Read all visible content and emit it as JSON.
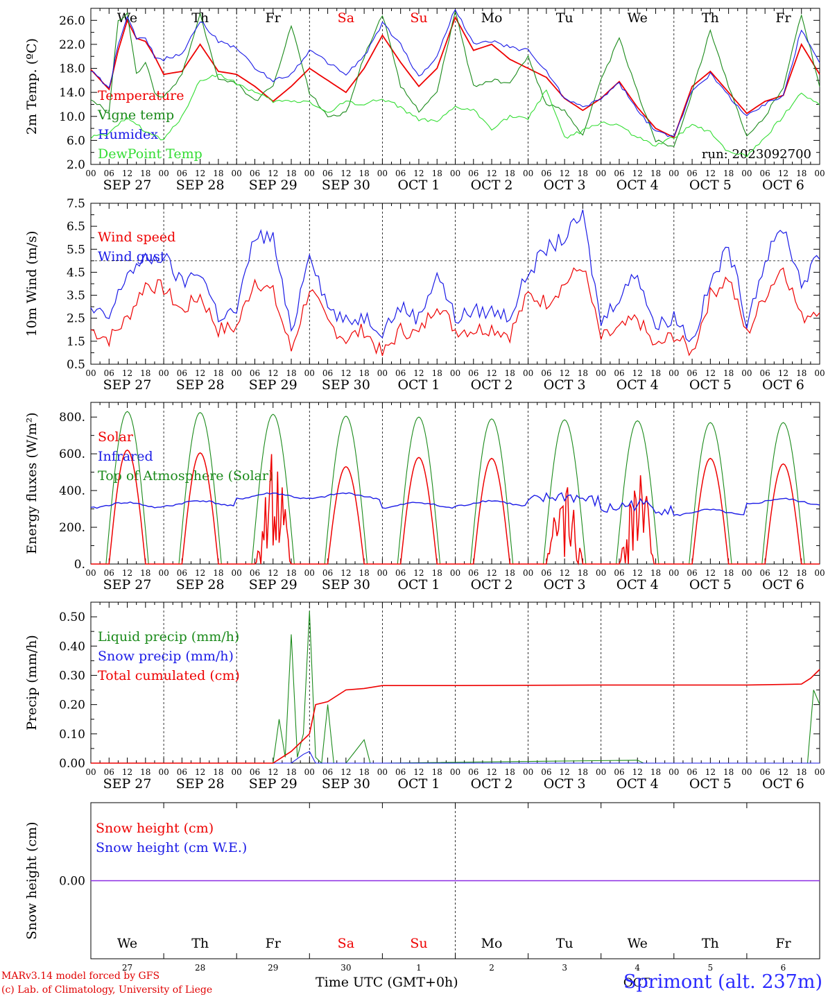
{
  "colors": {
    "red": "#ee0000",
    "green": "#1a8a1a",
    "blue": "#1a1ae6",
    "lightgreen": "#33dd33",
    "purple": "#8a2be2"
  },
  "days": [
    "We",
    "Th",
    "Fr",
    "Sa",
    "Su",
    "Mo",
    "Tu",
    "We",
    "Th",
    "Fr"
  ],
  "weekend_day_indices": [
    3,
    4
  ],
  "dates": [
    "SEP 27",
    "SEP 28",
    "SEP 29",
    "SEP 30",
    "OCT  1",
    "OCT  2",
    "OCT  3",
    "OCT  4",
    "OCT  5",
    "OCT  6"
  ],
  "hour_ticks": [
    "00",
    "06",
    "12",
    "18"
  ],
  "final_tick": "00",
  "panel1": {
    "ylabel": "2m Temp. (ºC)",
    "yticks": [
      "2.0",
      "6.0",
      "10.0",
      "14.0",
      "18.0",
      "22.0",
      "26.0"
    ],
    "ylim": [
      2,
      28
    ],
    "run_label": "run: 2023092700",
    "legend": [
      "Temperature",
      "Vigne temp",
      "Humidex",
      "DewPoint Temp"
    ]
  },
  "panel2": {
    "ylabel": "10m Wind (m/s)",
    "yticks": [
      "0.5",
      "1.5",
      "2.5",
      "3.5",
      "4.5",
      "5.5",
      "6.5",
      "7.5"
    ],
    "ylim": [
      0.5,
      7.5
    ],
    "threshold": 5.0,
    "legend": [
      "Wind speed",
      "Wind gust"
    ]
  },
  "panel3": {
    "ylabel": "Energy fluxes (W/m²)",
    "yticks": [
      "0.",
      "200.",
      "400.",
      "600.",
      "800."
    ],
    "ylim": [
      0,
      880
    ],
    "legend": [
      "Solar",
      "Infrared",
      "Top of Atmosphere (Solar)"
    ]
  },
  "panel4": {
    "ylabel": "Precip (mm/h)",
    "yticks": [
      "0.00",
      "0.10",
      "0.20",
      "0.30",
      "0.40",
      "0.50"
    ],
    "ylim": [
      0,
      0.55
    ],
    "legend": [
      "Liquid precip (mm/h)",
      "Snow precip (mm/h)",
      "Total cumulated (cm)"
    ]
  },
  "panel5": {
    "ylabel": "Snow height (cm)",
    "yticks": [
      "0.00"
    ],
    "legend": [
      "Snow height (cm)",
      "Snow height (cm W.E.)"
    ],
    "day_numbers": [
      "27",
      "28",
      "29",
      "30",
      "1",
      "2",
      "3",
      "4",
      "5",
      "6"
    ],
    "month_label": "OCT"
  },
  "footer": {
    "model": "MARv3.14 model forced by GFS",
    "lab": "(c) Lab. of Climatology, University of Liege",
    "xlabel": "Time UTC (GMT+0h)",
    "station": "Sprimont (alt. 237m)"
  },
  "chart_data": [
    {
      "type": "line",
      "title": "",
      "ylabel": "2m Temp. (ºC)",
      "x_unit": "hours since SEP 27 00 UTC",
      "ylim": [
        2,
        28
      ],
      "series": [
        {
          "name": "Temperature",
          "color": "#ee0000",
          "x": [
            0,
            6,
            9,
            12,
            15,
            18,
            21,
            24,
            30,
            36,
            42,
            48,
            54,
            60,
            66,
            72,
            78,
            84,
            90,
            96,
            102,
            108,
            114,
            120,
            126,
            132,
            138,
            144,
            150,
            156,
            162,
            168,
            174,
            180,
            186,
            192,
            198,
            204,
            210,
            216,
            222,
            228,
            234,
            240
          ],
          "values": [
            17.8,
            14.5,
            21.0,
            26.0,
            23.0,
            22.5,
            20.0,
            17.0,
            17.5,
            22.0,
            17.5,
            17.0,
            15.0,
            12.5,
            15.0,
            18.0,
            16.0,
            14.0,
            18.0,
            23.5,
            19.0,
            15.0,
            18.0,
            26.5,
            21.0,
            22.0,
            19.5,
            18.0,
            16.5,
            13.0,
            11.0,
            13.0,
            15.8,
            11.5,
            8.0,
            6.5,
            15.0,
            17.5,
            14.0,
            10.5,
            12.5,
            13.5,
            22.0,
            17.0
          ]
        },
        {
          "name": "Vigne temp",
          "color": "#1a8a1a",
          "x": [
            0,
            6,
            9,
            12,
            15,
            18,
            21,
            24,
            30,
            36,
            42,
            48,
            54,
            60,
            66,
            72,
            78,
            84,
            90,
            96,
            102,
            108,
            114,
            120,
            126,
            132,
            138,
            144,
            150,
            156,
            162,
            168,
            174,
            180,
            186,
            192,
            198,
            204,
            210,
            216,
            222,
            228,
            234,
            240
          ],
          "values": [
            13.0,
            10.5,
            26.0,
            27.0,
            17.0,
            19.0,
            14.0,
            13.0,
            17.0,
            27.0,
            16.0,
            15.5,
            12.5,
            15.0,
            25.0,
            14.0,
            10.0,
            10.5,
            20.0,
            27.0,
            15.0,
            11.0,
            14.0,
            27.5,
            15.0,
            16.0,
            15.5,
            20.0,
            12.0,
            11.0,
            7.0,
            16.0,
            23.0,
            14.0,
            6.0,
            5.0,
            14.0,
            24.5,
            15.0,
            6.5,
            10.0,
            15.0,
            27.0,
            15.0
          ]
        },
        {
          "name": "Humidex",
          "color": "#1a1ae6",
          "x": [
            0,
            6,
            9,
            12,
            15,
            18,
            21,
            24,
            30,
            36,
            42,
            48,
            54,
            60,
            66,
            72,
            78,
            84,
            90,
            96,
            102,
            108,
            114,
            120,
            126,
            132,
            138,
            144,
            150,
            156,
            162,
            168,
            174,
            180,
            186,
            192,
            198,
            204,
            210,
            216,
            222,
            228,
            234,
            240
          ],
          "values": [
            17.8,
            14.5,
            22.0,
            26.5,
            23.0,
            23.0,
            20.0,
            19.5,
            20.5,
            26.0,
            22.5,
            21.5,
            18.0,
            16.0,
            17.0,
            21.0,
            19.0,
            17.0,
            20.0,
            25.5,
            22.0,
            16.5,
            20.0,
            28.0,
            22.0,
            22.5,
            21.5,
            21.0,
            17.5,
            13.0,
            11.5,
            13.0,
            15.5,
            11.0,
            7.5,
            6.5,
            14.5,
            17.0,
            13.5,
            10.0,
            12.0,
            13.5,
            24.5,
            19.0
          ]
        },
        {
          "name": "DewPoint Temp",
          "color": "#33dd33",
          "x": [
            0,
            6,
            12,
            18,
            24,
            30,
            36,
            42,
            48,
            54,
            60,
            66,
            72,
            78,
            84,
            90,
            96,
            102,
            108,
            114,
            120,
            126,
            132,
            138,
            144,
            150,
            156,
            162,
            168,
            174,
            180,
            186,
            192,
            198,
            204,
            210,
            216,
            222,
            228,
            234,
            240
          ],
          "values": [
            6.5,
            7.0,
            10.0,
            7.5,
            6.0,
            10.0,
            16.0,
            17.0,
            15.5,
            14.0,
            12.5,
            12.5,
            12.5,
            10.5,
            12.5,
            12.0,
            13.0,
            11.5,
            9.5,
            9.0,
            11.5,
            11.0,
            8.0,
            10.0,
            9.5,
            14.5,
            6.5,
            7.5,
            9.0,
            8.5,
            6.5,
            5.0,
            6.5,
            8.5,
            7.5,
            4.0,
            3.5,
            6.5,
            10.0,
            14.0,
            12.0
          ]
        }
      ]
    },
    {
      "type": "line",
      "title": "",
      "ylabel": "10m Wind (m/s)",
      "x_unit": "hours since SEP 27 00 UTC",
      "ylim": [
        0.5,
        7.5
      ],
      "series": [
        {
          "name": "Wind speed",
          "color": "#ee0000",
          "x": [
            0,
            6,
            12,
            18,
            24,
            30,
            36,
            42,
            48,
            54,
            60,
            66,
            72,
            78,
            84,
            90,
            96,
            102,
            108,
            114,
            120,
            126,
            132,
            138,
            144,
            150,
            156,
            162,
            168,
            174,
            180,
            186,
            192,
            198,
            204,
            210,
            216,
            222,
            228,
            234,
            240
          ],
          "values": [
            2.0,
            1.6,
            2.5,
            4.0,
            3.8,
            2.8,
            3.5,
            2.0,
            2.1,
            4.2,
            3.6,
            1.1,
            3.8,
            2.3,
            1.6,
            2.0,
            0.9,
            2.0,
            1.8,
            3.2,
            2.0,
            2.0,
            2.1,
            1.8,
            3.5,
            3.2,
            4.0,
            4.8,
            1.6,
            2.0,
            2.5,
            1.2,
            1.8,
            1.0,
            3.5,
            4.3,
            1.8,
            3.5,
            4.8,
            2.5,
            3.0
          ]
        },
        {
          "name": "Wind gust",
          "color": "#1a1ae6",
          "x": [
            0,
            6,
            12,
            18,
            24,
            30,
            36,
            42,
            48,
            54,
            60,
            66,
            72,
            78,
            84,
            90,
            96,
            102,
            108,
            114,
            120,
            126,
            132,
            138,
            144,
            150,
            156,
            162,
            168,
            174,
            180,
            186,
            192,
            198,
            204,
            210,
            216,
            222,
            228,
            234,
            240
          ],
          "values": [
            2.8,
            2.5,
            4.5,
            5.0,
            5.2,
            4.0,
            4.6,
            2.6,
            2.8,
            6.1,
            6.0,
            1.8,
            5.5,
            3.0,
            2.3,
            2.6,
            2.0,
            3.0,
            2.5,
            4.5,
            2.5,
            2.8,
            2.8,
            2.6,
            4.5,
            5.5,
            6.0,
            7.0,
            2.3,
            3.5,
            4.5,
            2.1,
            2.6,
            1.5,
            4.0,
            5.6,
            2.4,
            5.0,
            6.5,
            4.0,
            5.2
          ]
        }
      ],
      "threshold": 5.0
    },
    {
      "type": "line",
      "title": "",
      "ylabel": "Energy fluxes (W/m²)",
      "x_unit": "hours since SEP 27 00 UTC",
      "ylim": [
        0,
        880
      ],
      "series": [
        {
          "name": "Solar",
          "color": "#ee0000",
          "daily_peaks": [
            620,
            605,
            590,
            530,
            580,
            575,
            450,
            560,
            575,
            545
          ]
        },
        {
          "name": "Infrared",
          "color": "#1a1ae6",
          "daily_means": [
            320,
            330,
            370,
            370,
            320,
            330,
            355,
            310,
            280,
            340
          ]
        },
        {
          "name": "Top of Atmosphere (Solar)",
          "color": "#1a8a1a",
          "daily_peaks": [
            830,
            825,
            815,
            805,
            800,
            790,
            785,
            780,
            770,
            770
          ]
        }
      ]
    },
    {
      "type": "line",
      "title": "",
      "ylabel": "Precip (mm/h)",
      "x_unit": "hours since SEP 27 00 UTC",
      "ylim": [
        0,
        0.55
      ],
      "series": [
        {
          "name": "Liquid precip (mm/h)",
          "color": "#1a8a1a",
          "x": [
            0,
            60,
            62,
            64,
            66,
            68,
            70,
            72,
            74,
            76,
            78,
            80,
            82,
            84,
            90,
            92,
            94,
            96,
            180,
            182,
            184,
            236,
            238,
            240
          ],
          "values": [
            0,
            0,
            0.15,
            0.02,
            0.44,
            0.02,
            0.1,
            0.52,
            0.02,
            0,
            0.2,
            0,
            0,
            0,
            0.08,
            0,
            0,
            0,
            0.01,
            0,
            0,
            0,
            0.25,
            0.2
          ]
        },
        {
          "name": "Snow precip (mm/h)",
          "color": "#1a1ae6",
          "x": [
            0,
            66,
            70,
            72,
            74,
            76,
            240
          ],
          "values": [
            0,
            0,
            0.03,
            0.04,
            0,
            0,
            0
          ]
        },
        {
          "name": "Total cumulated (cm)",
          "color": "#ee0000",
          "x": [
            0,
            60,
            66,
            72,
            74,
            78,
            84,
            90,
            96,
            120,
            168,
            216,
            234,
            237,
            240
          ],
          "values": [
            0,
            0,
            0.04,
            0.1,
            0.2,
            0.21,
            0.25,
            0.255,
            0.265,
            0.265,
            0.267,
            0.267,
            0.27,
            0.29,
            0.32
          ]
        }
      ]
    },
    {
      "type": "line",
      "title": "",
      "ylabel": "Snow height (cm)",
      "x_unit": "hours since SEP 27 00 UTC",
      "series": [
        {
          "name": "Snow height (cm)",
          "color": "#ee0000",
          "x": [
            0,
            240
          ],
          "values": [
            0,
            0
          ]
        },
        {
          "name": "Snow height (cm W.E.)",
          "color": "#1a1ae6",
          "x": [
            0,
            240
          ],
          "values": [
            0,
            0
          ]
        }
      ]
    }
  ]
}
